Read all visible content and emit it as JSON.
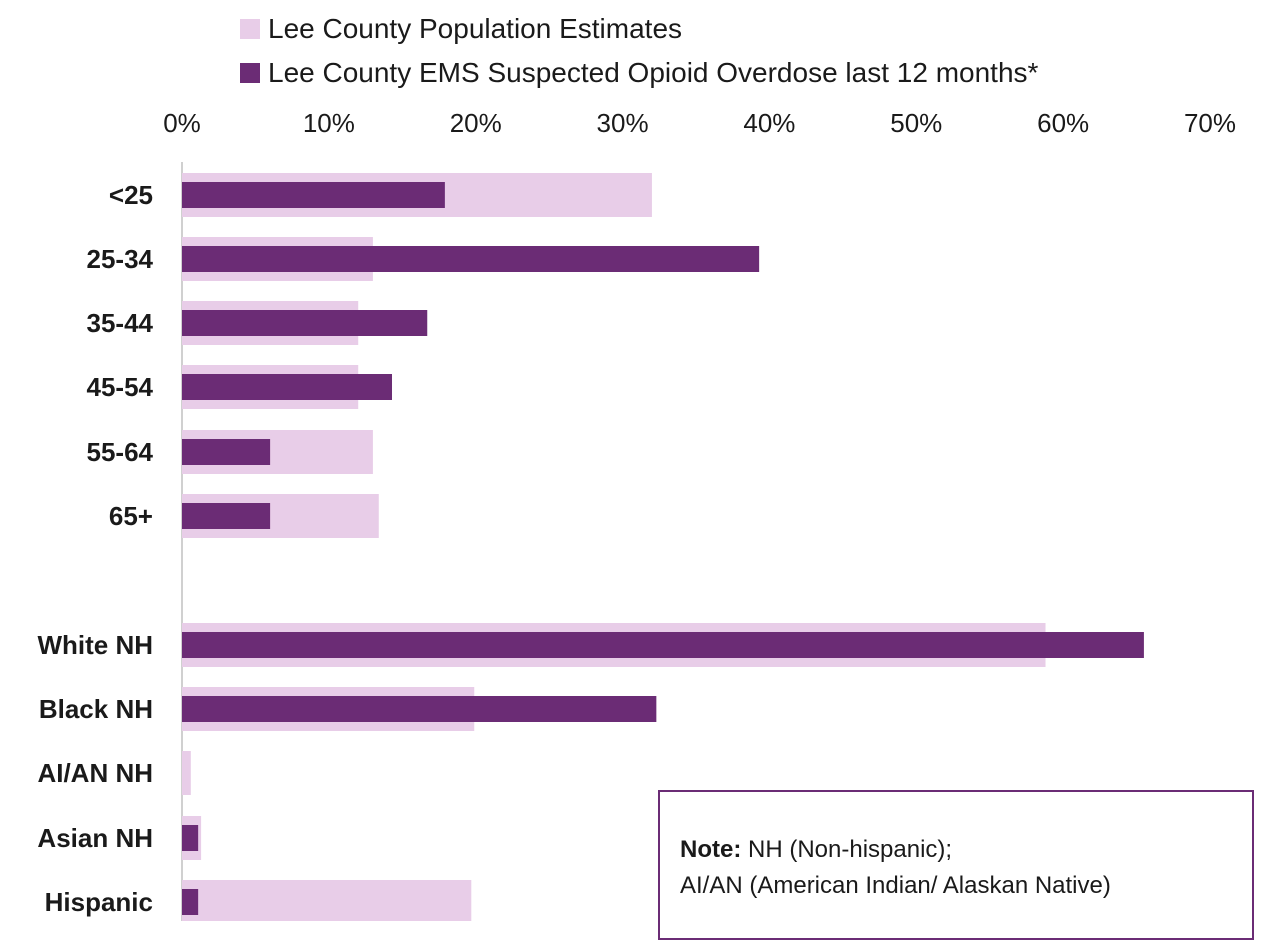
{
  "chart_data": {
    "type": "bar",
    "orientation": "horizontal",
    "categories": [
      "<25",
      "25-34",
      "35-44",
      "45-54",
      "55-64",
      "65+",
      "White NH",
      "Black NH",
      "AI/AN NH",
      "Asian NH",
      "Hispanic"
    ],
    "series": [
      {
        "name": "Lee County Population Estimates",
        "color": "#e8cde8",
        "values": [
          32,
          13,
          12,
          12,
          13,
          13.4,
          58.8,
          19.9,
          0.6,
          1.3,
          19.7
        ]
      },
      {
        "name": "Lee County EMS Suspected Opioid Overdose last 12 months*",
        "color": "#6b2c75",
        "values": [
          17.9,
          39.3,
          16.7,
          14.3,
          6,
          6,
          65.5,
          32.3,
          0,
          1.1,
          1.1
        ]
      }
    ],
    "xlim": [
      0,
      70
    ],
    "xticks": [
      "0%",
      "10%",
      "20%",
      "30%",
      "40%",
      "50%",
      "60%",
      "70%"
    ],
    "xtick_values": [
      0,
      10,
      20,
      30,
      40,
      50,
      60,
      70
    ],
    "legend_position": "top",
    "grid": false
  },
  "note": {
    "label": "Note:",
    "line1": " NH (Non-hispanic);",
    "line2": "AI/AN (American Indian/ Alaskan Native)"
  }
}
